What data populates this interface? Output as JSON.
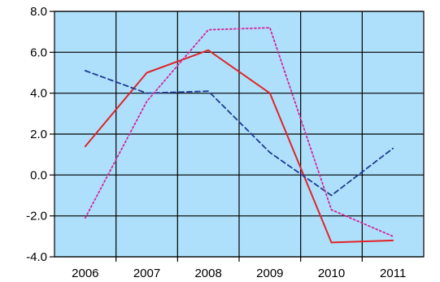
{
  "chart_data": {
    "type": "line",
    "title": "",
    "xlabel": "",
    "ylabel": "",
    "x": [
      "2006",
      "2007",
      "2008",
      "2009",
      "2010",
      "2011"
    ],
    "ylim": [
      -4.0,
      8.0
    ],
    "y_ticks": [
      "8.0",
      "6.0",
      "4.0",
      "2.0",
      "0.0",
      "-2.0",
      "-4.0"
    ],
    "y_tick_values": [
      8,
      6,
      4,
      2,
      0,
      -2,
      -4
    ],
    "grid": true,
    "legend": "none",
    "plot_background": "#aee0fb",
    "series": [
      {
        "values": [
          1.4,
          5.0,
          6.1,
          4.0,
          -3.3,
          -3.2
        ],
        "color": "#e0242b",
        "style": "solid"
      },
      {
        "values": [
          5.1,
          4.0,
          4.1,
          1.1,
          -1.0,
          1.3
        ],
        "color": "#1f3a93",
        "style": "dashed"
      },
      {
        "values": [
          -2.1,
          3.6,
          7.1,
          7.2,
          -1.7,
          -3.0
        ],
        "color": "#d6249a",
        "style": "dotted"
      }
    ]
  }
}
